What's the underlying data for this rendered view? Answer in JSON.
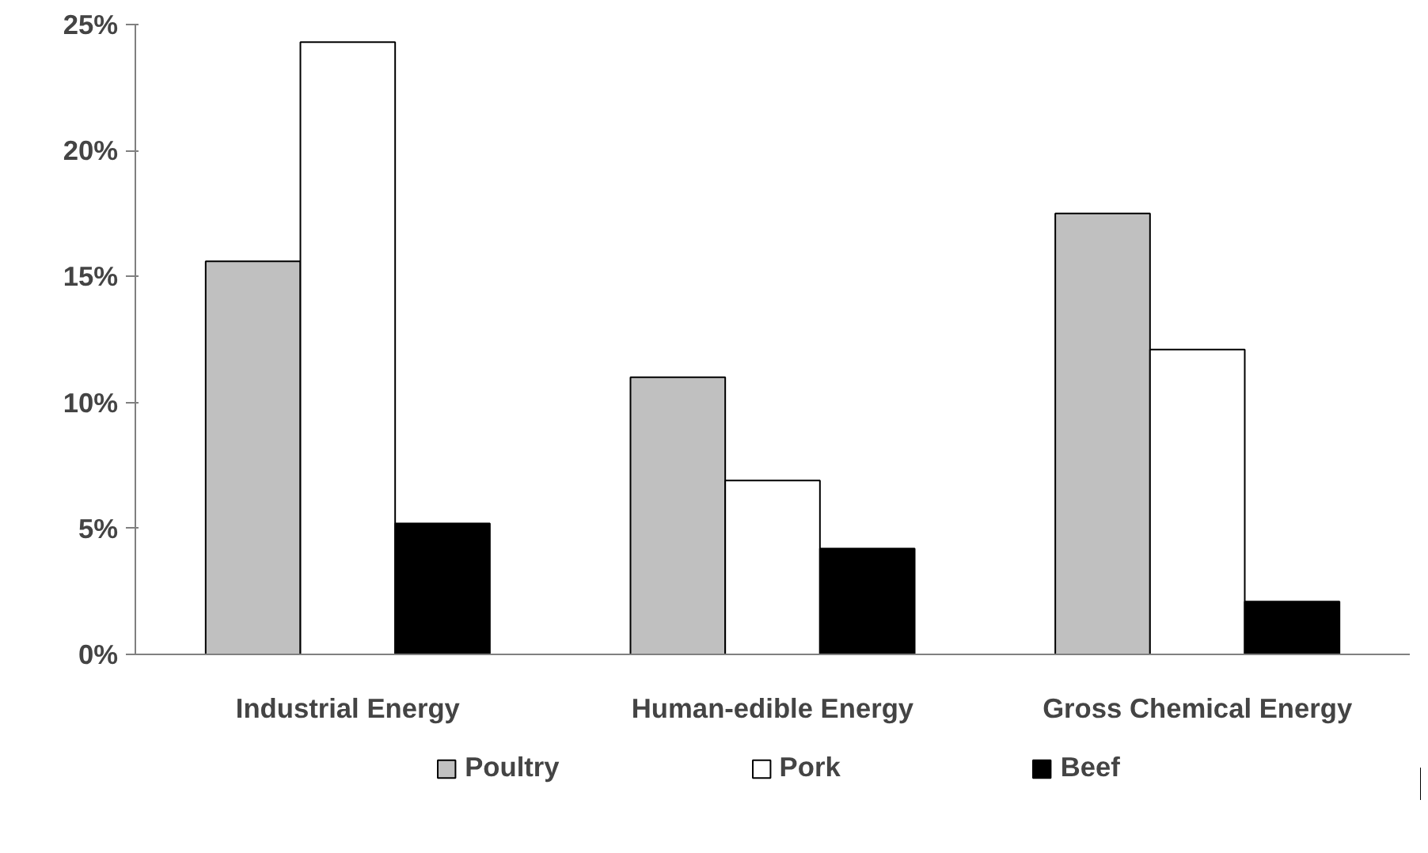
{
  "chart_data": {
    "type": "bar",
    "categories": [
      "Industrial Energy",
      "Human-edible Energy",
      "Gross Chemical Energy"
    ],
    "series": [
      {
        "name": "Poultry",
        "color": "#c0c0c0",
        "values": [
          15.6,
          11.0,
          17.5
        ]
      },
      {
        "name": "Pork",
        "color": "#ffffff",
        "values": [
          24.3,
          6.9,
          12.1
        ]
      },
      {
        "name": "Beef",
        "color": "#000000",
        "values": [
          5.2,
          4.2,
          2.1
        ]
      }
    ],
    "ylim": [
      0,
      25
    ],
    "yticks": [
      {
        "value": 0,
        "label": "0%"
      },
      {
        "value": 5,
        "label": "5%"
      },
      {
        "value": 10,
        "label": "10%"
      },
      {
        "value": 15,
        "label": "15%"
      },
      {
        "value": 20,
        "label": "20%"
      },
      {
        "value": 25,
        "label": "25%"
      }
    ],
    "grid": false,
    "legend": "bottom"
  }
}
